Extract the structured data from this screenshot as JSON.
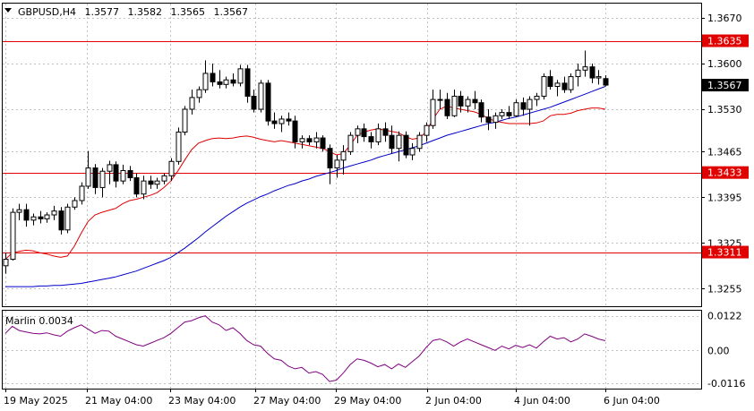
{
  "header": {
    "symbol": "GBPUSD,H4",
    "open": "1.3577",
    "high": "1.3582",
    "low": "1.3565",
    "close": "1.3567"
  },
  "price_axis": {
    "ticks": [
      "1.3670",
      "1.3600",
      "1.3530",
      "1.3465",
      "1.3395",
      "1.3325",
      "1.3255"
    ],
    "level_tags": [
      "1.3635",
      "1.3433",
      "1.3311"
    ],
    "current_tag": "1.3567"
  },
  "time_axis": {
    "labels": [
      "19 May 2025",
      "21 May 04:00",
      "23 May 04:00",
      "27 May 04:00",
      "29 May 04:00",
      "2 Jun 04:00",
      "4 Jun 04:00",
      "6 Jun 04:00"
    ]
  },
  "indicator": {
    "label": "Marlin 0.0034",
    "ticks": [
      "0.0122",
      "0.00",
      "-0.0116"
    ]
  },
  "colors": {
    "background": "#ffffff",
    "grid": "#c0c0c0",
    "candle": "#000000",
    "level_lines": "#e00000",
    "fast_ma": "#e00000",
    "slow_ma": "#0000c8",
    "oscillator": "#800080",
    "current_tag_bg": "#000000",
    "level_tag_bg": "#e00000"
  },
  "chart_data": [
    {
      "type": "candlestick",
      "symbol": "GBPUSD",
      "timeframe": "H4",
      "time_labels": [
        "19 May 2025",
        "21 May 04:00",
        "23 May 04:00",
        "27 May 04:00",
        "29 May 04:00",
        "2 Jun 04:00",
        "4 Jun 04:00",
        "6 Jun 04:00"
      ],
      "ylim": [
        1.3228,
        1.3692
      ],
      "horizontal_levels": [
        1.3635,
        1.3433,
        1.3311
      ],
      "last_price": 1.3567,
      "grid": true,
      "ohlc": [
        [
          1.329,
          1.331,
          1.3278,
          1.33
        ],
        [
          1.33,
          1.3378,
          1.3298,
          1.3372
        ],
        [
          1.3372,
          1.3385,
          1.336,
          1.3376
        ],
        [
          1.3376,
          1.3385,
          1.335,
          1.336
        ],
        [
          1.336,
          1.337,
          1.3352,
          1.3365
        ],
        [
          1.3365,
          1.3374,
          1.3355,
          1.3362
        ],
        [
          1.3362,
          1.3372,
          1.3356,
          1.3368
        ],
        [
          1.3368,
          1.3382,
          1.336,
          1.3374
        ],
        [
          1.3374,
          1.338,
          1.3338,
          1.3345
        ],
        [
          1.3345,
          1.3385,
          1.334,
          1.338
        ],
        [
          1.338,
          1.3395,
          1.3376,
          1.339
        ],
        [
          1.339,
          1.3418,
          1.3384,
          1.3412
        ],
        [
          1.3412,
          1.3466,
          1.3408,
          1.344
        ],
        [
          1.344,
          1.3446,
          1.34,
          1.341
        ],
        [
          1.341,
          1.344,
          1.3395,
          1.3435
        ],
        [
          1.3435,
          1.3451,
          1.3415,
          1.3445
        ],
        [
          1.3445,
          1.345,
          1.341,
          1.342
        ],
        [
          1.342,
          1.3445,
          1.3415,
          1.3436
        ],
        [
          1.3436,
          1.3443,
          1.342,
          1.3425
        ],
        [
          1.3425,
          1.3432,
          1.3395,
          1.34
        ],
        [
          1.34,
          1.3428,
          1.3392,
          1.342
        ],
        [
          1.342,
          1.3428,
          1.3408,
          1.3415
        ],
        [
          1.3415,
          1.3425,
          1.3408,
          1.342
        ],
        [
          1.342,
          1.3432,
          1.3415,
          1.3428
        ],
        [
          1.3428,
          1.3455,
          1.342,
          1.345
        ],
        [
          1.345,
          1.3502,
          1.3445,
          1.3495
        ],
        [
          1.3495,
          1.3535,
          1.349,
          1.353
        ],
        [
          1.353,
          1.356,
          1.3522,
          1.3548
        ],
        [
          1.3548,
          1.3565,
          1.354,
          1.356
        ],
        [
          1.356,
          1.3605,
          1.3555,
          1.3585
        ],
        [
          1.3585,
          1.36,
          1.3565,
          1.3572
        ],
        [
          1.3572,
          1.359,
          1.3562,
          1.3568
        ],
        [
          1.3568,
          1.358,
          1.3562,
          1.3575
        ],
        [
          1.3575,
          1.3585,
          1.3565,
          1.357
        ],
        [
          1.357,
          1.3598,
          1.3565,
          1.3592
        ],
        [
          1.3592,
          1.3598,
          1.354,
          1.355
        ],
        [
          1.355,
          1.356,
          1.3525,
          1.353
        ],
        [
          1.353,
          1.3575,
          1.3525,
          1.357
        ],
        [
          1.357,
          1.3575,
          1.3505,
          1.3512
        ],
        [
          1.3512,
          1.3525,
          1.35,
          1.3508
        ],
        [
          1.3508,
          1.352,
          1.3495,
          1.3515
        ],
        [
          1.3515,
          1.3525,
          1.3505,
          1.3512
        ],
        [
          1.3512,
          1.352,
          1.347,
          1.348
        ],
        [
          1.348,
          1.349,
          1.347,
          1.3485
        ],
        [
          1.3485,
          1.349,
          1.3475,
          1.348
        ],
        [
          1.348,
          1.3495,
          1.347,
          1.3486
        ],
        [
          1.3486,
          1.349,
          1.3465,
          1.347
        ],
        [
          1.347,
          1.3476,
          1.3415,
          1.344
        ],
        [
          1.344,
          1.346,
          1.3425,
          1.3452
        ],
        [
          1.3452,
          1.3475,
          1.343,
          1.3465
        ],
        [
          1.3465,
          1.3495,
          1.346,
          1.349
        ],
        [
          1.349,
          1.3505,
          1.3478,
          1.35
        ],
        [
          1.35,
          1.3508,
          1.348,
          1.3488
        ],
        [
          1.3488,
          1.3495,
          1.347,
          1.348
        ],
        [
          1.348,
          1.3508,
          1.3475,
          1.35
        ],
        [
          1.35,
          1.351,
          1.348,
          1.349
        ],
        [
          1.349,
          1.3505,
          1.3462,
          1.347
        ],
        [
          1.347,
          1.3496,
          1.345,
          1.349
        ],
        [
          1.349,
          1.3496,
          1.3455,
          1.346
        ],
        [
          1.346,
          1.3478,
          1.3452,
          1.347
        ],
        [
          1.347,
          1.3495,
          1.3465,
          1.349
        ],
        [
          1.349,
          1.351,
          1.348,
          1.3505
        ],
        [
          1.3505,
          1.356,
          1.35,
          1.3545
        ],
        [
          1.3545,
          1.356,
          1.353,
          1.3545
        ],
        [
          1.3545,
          1.3555,
          1.3515,
          1.352
        ],
        [
          1.352,
          1.356,
          1.3518,
          1.355
        ],
        [
          1.355,
          1.3558,
          1.3525,
          1.3535
        ],
        [
          1.3535,
          1.355,
          1.3525,
          1.3545
        ],
        [
          1.3545,
          1.3558,
          1.353,
          1.354
        ],
        [
          1.354,
          1.3545,
          1.351,
          1.3518
        ],
        [
          1.3518,
          1.353,
          1.3498,
          1.351
        ],
        [
          1.351,
          1.3525,
          1.35,
          1.352
        ],
        [
          1.352,
          1.353,
          1.3515,
          1.3525
        ],
        [
          1.3525,
          1.3535,
          1.3515,
          1.352
        ],
        [
          1.352,
          1.3545,
          1.3518,
          1.354
        ],
        [
          1.354,
          1.3548,
          1.352,
          1.353
        ],
        [
          1.353,
          1.355,
          1.3505,
          1.3545
        ],
        [
          1.3545,
          1.3555,
          1.3535,
          1.355
        ],
        [
          1.355,
          1.3585,
          1.3545,
          1.358
        ],
        [
          1.358,
          1.359,
          1.356,
          1.3565
        ],
        [
          1.3565,
          1.3575,
          1.355,
          1.357
        ],
        [
          1.357,
          1.358,
          1.3555,
          1.356
        ],
        [
          1.356,
          1.3585,
          1.3555,
          1.358
        ],
        [
          1.358,
          1.36,
          1.3565,
          1.359
        ],
        [
          1.359,
          1.362,
          1.358,
          1.3595
        ],
        [
          1.3595,
          1.36,
          1.357,
          1.3578
        ],
        [
          1.3578,
          1.359,
          1.3568,
          1.358
        ],
        [
          1.3577,
          1.3582,
          1.3565,
          1.3567
        ]
      ],
      "fast_ma": [
        1.33,
        1.331,
        1.3312,
        1.3314,
        1.3313,
        1.331,
        1.3308,
        1.3305,
        1.3303,
        1.3305,
        1.332,
        1.334,
        1.3358,
        1.3368,
        1.3372,
        1.3375,
        1.3378,
        1.3385,
        1.339,
        1.3392,
        1.3395,
        1.3398,
        1.3402,
        1.341,
        1.342,
        1.3435,
        1.3452,
        1.3468,
        1.3478,
        1.3482,
        1.3485,
        1.3486,
        1.3485,
        1.3486,
        1.3488,
        1.3489,
        1.3487,
        1.3484,
        1.3482,
        1.348,
        1.3482,
        1.348,
        1.3478,
        1.3476,
        1.3474,
        1.3472,
        1.347,
        1.3465,
        1.346,
        1.3462,
        1.3475,
        1.349,
        1.3495,
        1.3498,
        1.35,
        1.3498,
        1.3496,
        1.3494,
        1.3488,
        1.3484,
        1.3486,
        1.3495,
        1.3515,
        1.353,
        1.3535,
        1.3532,
        1.353,
        1.3528,
        1.3526,
        1.3522,
        1.3516,
        1.3512,
        1.351,
        1.3508,
        1.3508,
        1.3508,
        1.3508,
        1.3509,
        1.3512,
        1.352,
        1.3522,
        1.3522,
        1.3524,
        1.3528,
        1.353,
        1.3532,
        1.3532,
        1.353
      ],
      "slow_ma": [
        1.3258,
        1.3258,
        1.3258,
        1.3258,
        1.3258,
        1.3259,
        1.3259,
        1.326,
        1.326,
        1.3261,
        1.3262,
        1.3263,
        1.3265,
        1.3267,
        1.3269,
        1.3271,
        1.3273,
        1.3276,
        1.3279,
        1.3282,
        1.3286,
        1.329,
        1.3294,
        1.3298,
        1.3303,
        1.331,
        1.3317,
        1.3325,
        1.3333,
        1.3342,
        1.335,
        1.3358,
        1.3366,
        1.3373,
        1.338,
        1.3386,
        1.3391,
        1.3396,
        1.34,
        1.3405,
        1.3409,
        1.3413,
        1.3416,
        1.342,
        1.3423,
        1.3427,
        1.343,
        1.3433,
        1.3436,
        1.344,
        1.3443,
        1.3446,
        1.3449,
        1.3452,
        1.3456,
        1.3459,
        1.3462,
        1.3465,
        1.3468,
        1.3471,
        1.3474,
        1.3478,
        1.3482,
        1.3486,
        1.349,
        1.3493,
        1.3496,
        1.3499,
        1.3502,
        1.3505,
        1.3508,
        1.351,
        1.3513,
        1.3516,
        1.3518,
        1.3521,
        1.3524,
        1.3527,
        1.353,
        1.3533,
        1.3537,
        1.3541,
        1.3545,
        1.3549,
        1.3553,
        1.3557,
        1.3561,
        1.3565
      ]
    },
    {
      "type": "line",
      "name": "Marlin",
      "current_value": 0.0034,
      "ylim": [
        -0.0135,
        0.014
      ],
      "ticks": [
        0.0122,
        0.0,
        -0.0116
      ],
      "values": [
        0.006,
        0.0085,
        0.007,
        0.0065,
        0.006,
        0.0058,
        0.0062,
        0.0055,
        0.005,
        0.0068,
        0.008,
        0.009,
        0.0075,
        0.006,
        0.007,
        0.0068,
        0.005,
        0.004,
        0.003,
        0.002,
        0.0015,
        0.0025,
        0.0035,
        0.0045,
        0.006,
        0.008,
        0.01,
        0.0105,
        0.0115,
        0.0122,
        0.01,
        0.009,
        0.007,
        0.008,
        0.006,
        0.0035,
        0.002,
        0.0015,
        -0.001,
        -0.003,
        -0.0035,
        -0.0055,
        -0.0065,
        -0.006,
        -0.008,
        -0.0075,
        -0.0085,
        -0.011,
        -0.0105,
        -0.008,
        -0.005,
        -0.003,
        -0.0035,
        -0.0045,
        -0.0058,
        -0.005,
        -0.0065,
        -0.0048,
        -0.006,
        -0.004,
        -0.002,
        0.001,
        0.0035,
        0.004,
        0.003,
        0.0015,
        0.003,
        0.004,
        0.003,
        0.002,
        0.001,
        0.0,
        0.0015,
        0.0005,
        0.0018,
        0.001,
        0.002,
        0.0008,
        0.003,
        0.005,
        0.004,
        0.0045,
        0.003,
        0.004,
        0.0058,
        0.005,
        0.004,
        0.0034
      ]
    }
  ]
}
